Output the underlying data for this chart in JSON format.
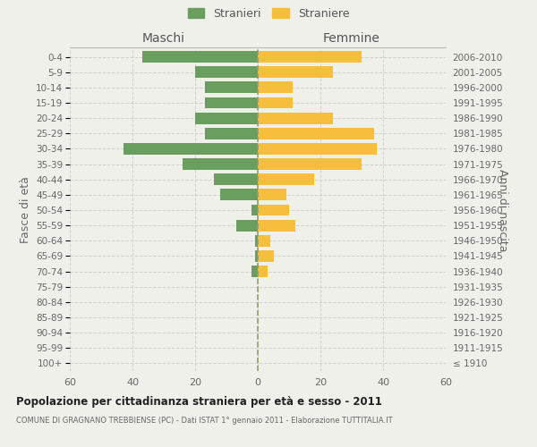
{
  "age_groups": [
    "100+",
    "95-99",
    "90-94",
    "85-89",
    "80-84",
    "75-79",
    "70-74",
    "65-69",
    "60-64",
    "55-59",
    "50-54",
    "45-49",
    "40-44",
    "35-39",
    "30-34",
    "25-29",
    "20-24",
    "15-19",
    "10-14",
    "5-9",
    "0-4"
  ],
  "birth_years": [
    "≤ 1910",
    "1911-1915",
    "1916-1920",
    "1921-1925",
    "1926-1930",
    "1931-1935",
    "1936-1940",
    "1941-1945",
    "1946-1950",
    "1951-1955",
    "1956-1960",
    "1961-1965",
    "1966-1970",
    "1971-1975",
    "1976-1980",
    "1981-1985",
    "1986-1990",
    "1991-1995",
    "1996-2000",
    "2001-2005",
    "2006-2010"
  ],
  "maschi": [
    0,
    0,
    0,
    0,
    0,
    0,
    2,
    1,
    1,
    7,
    2,
    12,
    14,
    24,
    43,
    17,
    20,
    17,
    17,
    20,
    37
  ],
  "femmine": [
    0,
    0,
    0,
    0,
    0,
    0,
    3,
    5,
    4,
    12,
    10,
    9,
    18,
    33,
    38,
    37,
    24,
    11,
    11,
    24,
    33
  ],
  "color_maschi": "#6a9e5e",
  "color_femmine": "#f5be3c",
  "background_color": "#f0f0eb",
  "grid_color": "#cccccc",
  "title": "Popolazione per cittadinanza straniera per età e sesso - 2011",
  "subtitle": "COMUNE DI GRAGNANO TREBBIENSE (PC) - Dati ISTAT 1° gennaio 2011 - Elaborazione TUTTITALIA.IT",
  "ylabel_left": "Fasce di età",
  "ylabel_right": "Anni di nascita",
  "xlim": 60,
  "legend_stranieri": "Stranieri",
  "legend_straniere": "Straniere",
  "maschi_label": "Maschi",
  "femmine_label": "Femmine"
}
